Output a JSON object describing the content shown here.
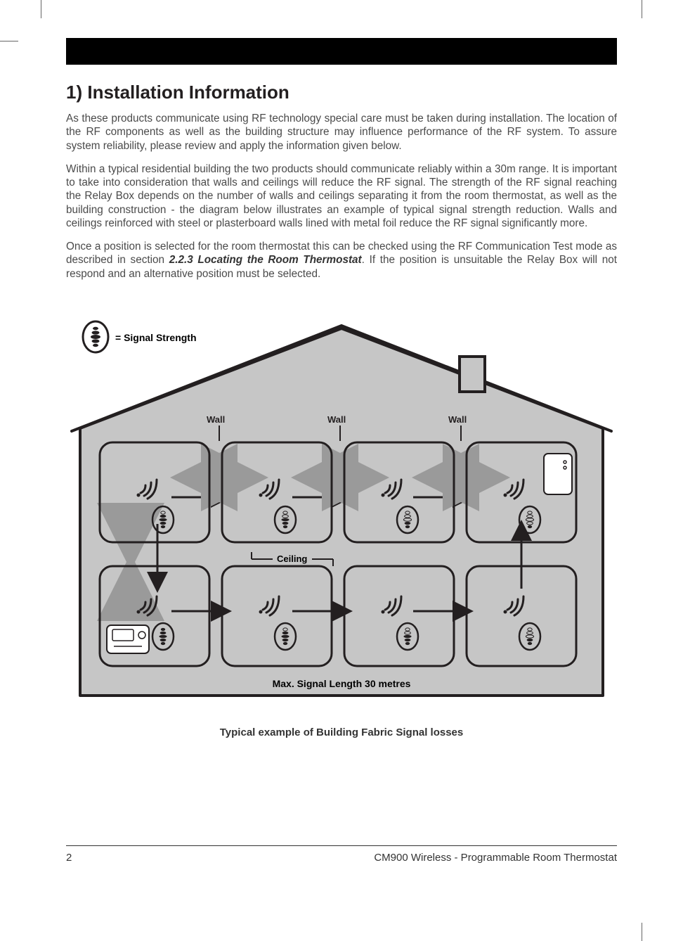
{
  "section_heading": "1) Installation Information",
  "para1": "As these products communicate using RF technology special care must be taken during installation. The location of the RF components as well as the building structure may influence performance of the RF system. To assure system reliability, please review and apply the information given below.",
  "para2": "Within a typical residential building the two products should communicate reliably within a 30m range. It is important to take into consideration that walls and ceilings will reduce the RF signal. The strength of the RF signal reaching the Relay Box depends on the number of walls and ceilings separating it from the room thermostat, as well as the building construction - the diagram below illustrates an example of typical signal strength reduction. Walls and ceilings reinforced with steel or plasterboard walls lined with metal foil reduce the RF signal significantly more.",
  "para3_pre": "Once a position is selected for the room thermostat this can be checked using the RF Communication Test mode as described in section ",
  "para3_bold": "2.2.3 Locating the Room Thermostat",
  "para3_post": ". If the position is unsuitable the Relay Box will not respond and an alternative position must be selected.",
  "diagram": {
    "legend": "= Signal Strength",
    "wall_label": "Wall",
    "ceiling_label": "Ceiling",
    "max_label": "Max. Signal Length 30 metres",
    "house_fill": "#c6c6c6",
    "house_stroke": "#231f20",
    "room_stroke": "#231f20",
    "arrow_grey": "#9a9a9a",
    "signal_levels_top": [
      4,
      3,
      2,
      1
    ],
    "signal_levels_bottom": [
      5,
      4,
      3,
      2
    ],
    "room_width": 156,
    "room_height": 142,
    "room_gap": 18,
    "room_rx": 18,
    "stroke_width": 3
  },
  "caption": "Typical example of Building Fabric Signal losses",
  "footer": {
    "page": "2",
    "product": "CM900 Wireless - Programmable Room Thermostat"
  },
  "colors": {
    "text": "#231f20",
    "body_text": "#4a4a4a",
    "bg": "#ffffff"
  }
}
